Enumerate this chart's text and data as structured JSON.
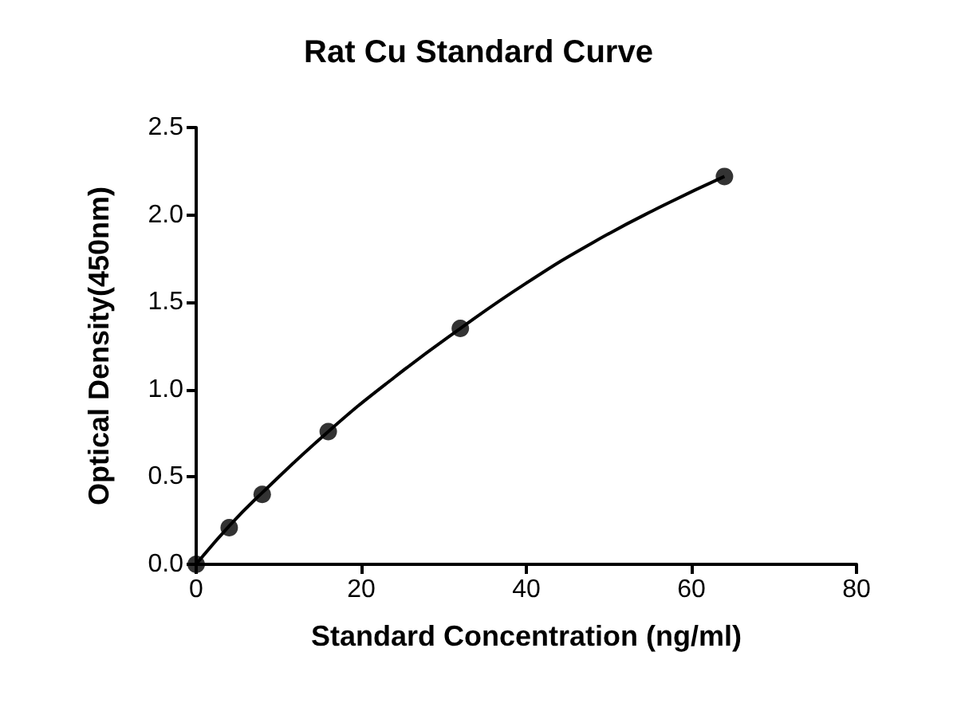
{
  "chart_data": {
    "type": "scatter",
    "title": "Rat Cu Standard Curve",
    "xlabel": "Standard Concentration (ng/ml)",
    "ylabel": "Optical Density(450nm)",
    "series": [
      {
        "color": "#000000",
        "marker": "circle",
        "x": [
          0,
          4,
          8,
          16,
          32,
          64
        ],
        "values": [
          0,
          0.21,
          0.4,
          0.76,
          1.35,
          2.22
        ]
      },
      {
        "type": "line",
        "color": "#000000",
        "marker": "none",
        "line_style": "solid",
        "x": [
          0,
          4,
          8,
          16,
          24,
          32,
          40,
          48,
          56,
          64
        ],
        "values": [
          0,
          0.22,
          0.41,
          0.76,
          1.07,
          1.35,
          1.61,
          1.84,
          2.04,
          2.22
        ]
      }
    ],
    "xlim": [
      0,
      80
    ],
    "xticks": [
      0,
      20,
      40,
      60,
      80
    ],
    "ylim": [
      0,
      2.5
    ],
    "yticks": [
      {
        "value": 0,
        "label": "0.0"
      },
      {
        "value": 0.5,
        "label": "0.5"
      },
      {
        "value": 1,
        "label": "1.0"
      },
      {
        "value": 1.5,
        "label": "1.5"
      },
      {
        "value": 2,
        "label": "2.0"
      },
      {
        "value": 2.5,
        "label": "2.5"
      }
    ],
    "grid": false
  }
}
